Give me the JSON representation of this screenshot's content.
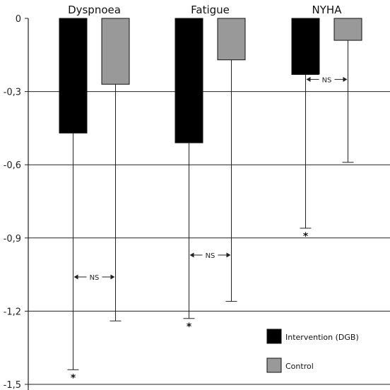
{
  "chart_data": {
    "type": "bar",
    "categories": [
      "Dyspnoea",
      "Fatigue",
      "NYHA"
    ],
    "series": [
      {
        "name": "Intervention (DGB)",
        "color": "#000000",
        "values": [
          -0.47,
          -0.51,
          -0.23
        ],
        "error_low": [
          -1.44,
          -1.23,
          -0.86
        ]
      },
      {
        "name": "Control",
        "color": "#999999",
        "values": [
          -0.27,
          -0.17,
          -0.09
        ],
        "error_low": [
          -1.24,
          -1.16,
          -0.59
        ]
      }
    ],
    "significance": [
      "*",
      "*",
      "*"
    ],
    "comparison_label": "NS",
    "ylim": [
      -1.5,
      0
    ],
    "yticks": [
      "0",
      "-0,3",
      "-0,6",
      "-0,9",
      "-1,2",
      "-1,5"
    ],
    "ytick_values": [
      0,
      -0.3,
      -0.6,
      -0.9,
      -1.2,
      -1.5
    ],
    "grid": true,
    "legend_position": "bottom-right",
    "xlabel": "",
    "ylabel": "",
    "title": ""
  }
}
